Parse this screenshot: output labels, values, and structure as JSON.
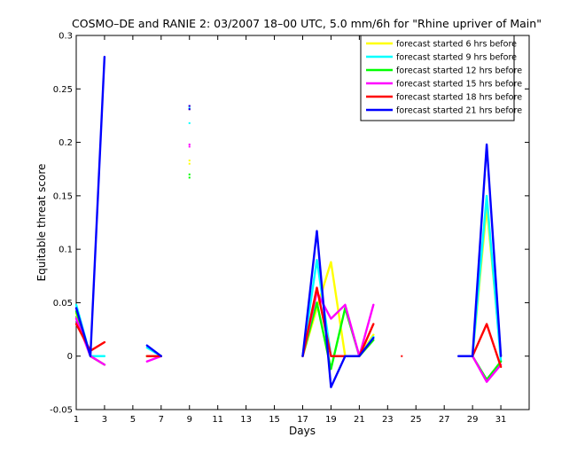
{
  "chart_data": {
    "type": "line",
    "title": "COSMO–DE and RANIE 2: 03/2007 18–00 UTC, 5.0 mm/6h for \"Rhine upriver of Main\"",
    "xlabel": "Days",
    "ylabel": "Equitable threat score",
    "xlim": [
      1,
      33
    ],
    "ylim": [
      -0.05,
      0.3
    ],
    "xticks": [
      1,
      3,
      5,
      7,
      9,
      11,
      13,
      15,
      17,
      19,
      21,
      23,
      25,
      27,
      29,
      31
    ],
    "yticks": [
      -0.05,
      0,
      0.05,
      0.1,
      0.15,
      0.2,
      0.25,
      0.3
    ],
    "ytick_labels": [
      "-0.05",
      "0",
      "0.05",
      "0.1",
      "0.15",
      "0.2",
      "0.25",
      "0.3"
    ],
    "legend_position": "top-right",
    "grid": false,
    "series": [
      {
        "name": "forecast started 6 hrs before",
        "color": "#ffff00",
        "segments": [
          [
            [
              1,
              0.04
            ],
            [
              2,
              0.0
            ],
            [
              3,
              -0.008
            ]
          ],
          [
            [
              6,
              0.0
            ],
            [
              7,
              0.0
            ]
          ],
          [
            [
              17,
              0.0
            ],
            [
              18,
              0.045
            ],
            [
              19,
              0.088
            ],
            [
              20,
              0.0
            ],
            [
              21,
              0.0
            ],
            [
              22,
              0.02
            ]
          ],
          [
            [
              29,
              0.0
            ],
            [
              30,
              0.14
            ],
            [
              31,
              0.0
            ]
          ]
        ],
        "points": [
          [
            9,
            0.18
          ],
          [
            9,
            0.183
          ]
        ]
      },
      {
        "name": "forecast started 9 hrs before",
        "color": "#00ffff",
        "segments": [
          [
            [
              1,
              0.048
            ],
            [
              2,
              0.0
            ],
            [
              3,
              0.0
            ]
          ],
          [
            [
              6,
              0.008
            ],
            [
              7,
              0.0
            ]
          ],
          [
            [
              17,
              0.0
            ],
            [
              18,
              0.09
            ],
            [
              19,
              0.0
            ],
            [
              20,
              0.0
            ],
            [
              21,
              0.0
            ],
            [
              22,
              0.018
            ]
          ],
          [
            [
              29,
              0.0
            ],
            [
              30,
              0.15
            ],
            [
              31,
              -0.005
            ]
          ]
        ],
        "points": [
          [
            9,
            0.218
          ],
          [
            9,
            0.232
          ]
        ]
      },
      {
        "name": "forecast started 12 hrs before",
        "color": "#00ff00",
        "segments": [
          [
            [
              1,
              0.042
            ],
            [
              2,
              0.0
            ],
            [
              3,
              -0.008
            ]
          ],
          [
            [
              6,
              0.0
            ],
            [
              7,
              0.0
            ]
          ],
          [
            [
              17,
              0.0
            ],
            [
              18,
              0.05
            ],
            [
              19,
              -0.012
            ],
            [
              20,
              0.045
            ],
            [
              21,
              0.0
            ],
            [
              22,
              0.015
            ]
          ],
          [
            [
              29,
              0.0
            ],
            [
              30,
              -0.022
            ],
            [
              31,
              -0.005
            ]
          ]
        ],
        "points": [
          [
            9,
            0.167
          ],
          [
            9,
            0.17
          ]
        ]
      },
      {
        "name": "forecast started 15 hrs before",
        "color": "#ff00ff",
        "segments": [
          [
            [
              1,
              0.035
            ],
            [
              2,
              0.0
            ],
            [
              3,
              -0.008
            ]
          ],
          [
            [
              6,
              -0.005
            ],
            [
              7,
              0.0
            ]
          ],
          [
            [
              17,
              0.0
            ],
            [
              18,
              0.06
            ],
            [
              19,
              0.035
            ],
            [
              20,
              0.048
            ],
            [
              21,
              0.0
            ],
            [
              22,
              0.048
            ]
          ],
          [
            [
              29,
              0.0
            ],
            [
              30,
              -0.024
            ],
            [
              31,
              -0.008
            ]
          ]
        ],
        "points": [
          [
            9,
            0.196
          ],
          [
            9,
            0.198
          ]
        ]
      },
      {
        "name": "forecast started 18 hrs before",
        "color": "#ff0000",
        "segments": [
          [
            [
              1,
              0.03
            ],
            [
              2,
              0.005
            ],
            [
              3,
              0.013
            ]
          ],
          [
            [
              6,
              0.0
            ],
            [
              7,
              0.0
            ]
          ],
          [
            [
              17,
              0.0
            ],
            [
              18,
              0.064
            ],
            [
              19,
              0.0
            ],
            [
              20,
              0.0
            ],
            [
              21,
              0.0
            ],
            [
              22,
              0.03
            ]
          ],
          [
            [
              29,
              0.0
            ],
            [
              30,
              0.03
            ],
            [
              31,
              -0.01
            ]
          ]
        ],
        "points": [
          [
            9,
            0.231
          ],
          [
            9,
            0.234
          ],
          [
            24,
            0.0
          ]
        ]
      },
      {
        "name": "forecast started 21 hrs before",
        "color": "#0000ff",
        "segments": [
          [
            [
              1,
              0.045
            ],
            [
              2,
              0.0
            ],
            [
              3,
              0.28
            ]
          ],
          [
            [
              6,
              0.01
            ],
            [
              7,
              0.0
            ]
          ],
          [
            [
              17,
              0.0
            ],
            [
              18,
              0.117
            ],
            [
              19,
              -0.029
            ],
            [
              20,
              0.0
            ],
            [
              21,
              0.0
            ],
            [
              22,
              0.017
            ]
          ],
          [
            [
              28,
              0.0
            ],
            [
              29,
              0.0
            ],
            [
              30,
              0.198
            ],
            [
              31,
              0.0
            ]
          ]
        ],
        "points": [
          [
            9,
            0.231
          ],
          [
            9,
            0.234
          ]
        ]
      }
    ]
  }
}
